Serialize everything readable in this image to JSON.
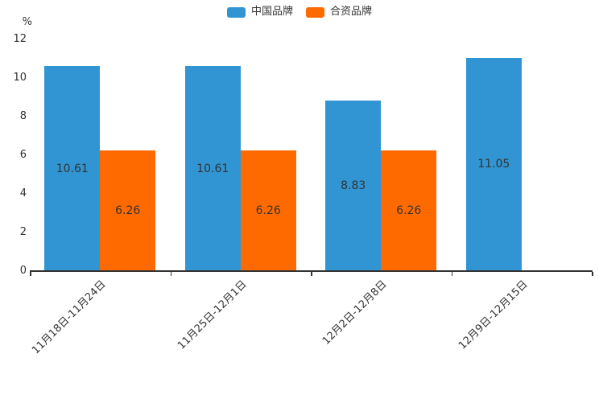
{
  "chart_data": {
    "type": "bar",
    "title": "",
    "categories": [
      "11月18日-11月24日",
      "11月25日-12月1日",
      "12月2日-12月8日",
      "12月9日-12月15日"
    ],
    "series": [
      {
        "name": "中国品牌",
        "color": "#3095d2",
        "values": [
          10.61,
          10.61,
          8.83,
          11.05
        ]
      },
      {
        "name": "合资品牌",
        "color": "#ff6a00",
        "values": [
          6.26,
          6.26,
          6.26,
          null
        ]
      }
    ],
    "ylabel": "%",
    "ylim": [
      0,
      12
    ],
    "yticks": [
      0,
      2,
      4,
      6,
      8,
      10,
      12
    ],
    "legend_position": "top-center",
    "grid": false,
    "value_label_position": "inside-center",
    "text_color": "#333333",
    "axis_color": "#333333"
  }
}
